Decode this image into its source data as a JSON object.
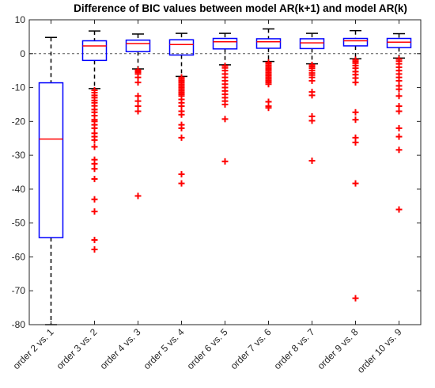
{
  "chart_data": {
    "type": "boxplot",
    "title": "Difference of BIC values between model AR(k+1) and model AR(k)",
    "xlabel": "",
    "ylabel": "",
    "ylim": [
      -80,
      10
    ],
    "yticks": [
      10,
      0,
      -10,
      -20,
      -30,
      -40,
      -50,
      -60,
      -70,
      -80
    ],
    "reference_line": 0,
    "grid": false,
    "colors": {
      "box": "#0000ff",
      "median": "#ff0000",
      "whisker": "#000000",
      "outlier": "#ff0000",
      "reference": "#555555"
    },
    "categories": [
      "order 2 vs. 1",
      "order 3 vs. 2",
      "order 4 vs. 3",
      "order 5 vs. 4",
      "order 6 vs. 5",
      "order 7 vs. 6",
      "order 8 vs. 7",
      "order 9 vs. 8",
      "order 10 vs. 9"
    ],
    "boxes": [
      {
        "lower_whisker": -80,
        "q1": -54.3,
        "median": -25.2,
        "q3": -8.6,
        "upper_whisker": 4.8,
        "outliers": []
      },
      {
        "lower_whisker": -10.3,
        "q1": -2,
        "median": 2.3,
        "q3": 3.8,
        "upper_whisker": 6.7,
        "outliers": [
          -10.8,
          -11.5,
          -12.3,
          -13,
          -13.8,
          -14.5,
          -15.4,
          -16.5,
          -17.3,
          -18.3,
          -19.5,
          -20,
          -21,
          -22,
          -23.5,
          -24.5,
          -25.5,
          -27.5,
          -31.3,
          -32.5,
          -34,
          -37,
          -43,
          -46.6,
          -55,
          -57.8
        ]
      },
      {
        "lower_whisker": -4.5,
        "q1": 0.6,
        "median": 3,
        "q3": 4,
        "upper_whisker": 5.8,
        "outliers": [
          -4.8,
          -5.2,
          -5.5,
          -6,
          -7,
          -8.5,
          -12.5,
          -14,
          -15.5,
          -17,
          -42
        ]
      },
      {
        "lower_whisker": -6.7,
        "q1": -0.4,
        "median": 2.7,
        "q3": 4.1,
        "upper_whisker": 6,
        "outliers": [
          -7,
          -7.5,
          -8,
          -8.5,
          -9,
          -9.5,
          -10,
          -10.5,
          -11,
          -11.5,
          -12,
          -12.5,
          -13.5,
          -14.5,
          -15.5,
          -17,
          -18,
          -21,
          -22,
          -24.8,
          -35.6,
          -38.3
        ]
      },
      {
        "lower_whisker": -3.3,
        "q1": 1.4,
        "median": 3.5,
        "q3": 4.5,
        "upper_whisker": 6,
        "outliers": [
          -3.6,
          -4.2,
          -5,
          -6,
          -7,
          -8,
          -9,
          -10,
          -11,
          -12,
          -13,
          -14,
          -15,
          -19.3,
          -31.8
        ]
      },
      {
        "lower_whisker": -2.3,
        "q1": 1.6,
        "median": 3.5,
        "q3": 4.4,
        "upper_whisker": 7.3,
        "outliers": [
          -2.6,
          -3,
          -3.5,
          -4,
          -4.5,
          -5,
          -5.5,
          -6,
          -6.5,
          -7,
          -7.5,
          -8,
          -8.5,
          -9,
          -14.2,
          -15.5,
          -16
        ]
      },
      {
        "lower_whisker": -3,
        "q1": 1.5,
        "median": 3.2,
        "q3": 4.4,
        "upper_whisker": 6,
        "outliers": [
          -3.3,
          -3.8,
          -4.3,
          -5,
          -5.7,
          -6.3,
          -7,
          -8,
          -11.3,
          -12.3,
          -18.5,
          -19.8,
          -31.6
        ]
      },
      {
        "lower_whisker": -1.5,
        "q1": 2.3,
        "median": 3.8,
        "q3": 4.5,
        "upper_whisker": 6.8,
        "outliers": [
          -1.8,
          -2.3,
          -2.8,
          -3.5,
          -4.3,
          -5.3,
          -6.2,
          -7.2,
          -8.5,
          -17.3,
          -19.5,
          -24.8,
          -26.2,
          -38.3,
          -72.2
        ]
      },
      {
        "lower_whisker": -1.3,
        "q1": 1.8,
        "median": 3.4,
        "q3": 4.5,
        "upper_whisker": 5.9,
        "outliers": [
          -1.6,
          -2.2,
          -3,
          -4,
          -5,
          -6,
          -7,
          -8,
          -9.5,
          -10.5,
          -12.5,
          -15.5,
          -17,
          -22,
          -24.5,
          -28.4,
          -46
        ]
      }
    ]
  }
}
